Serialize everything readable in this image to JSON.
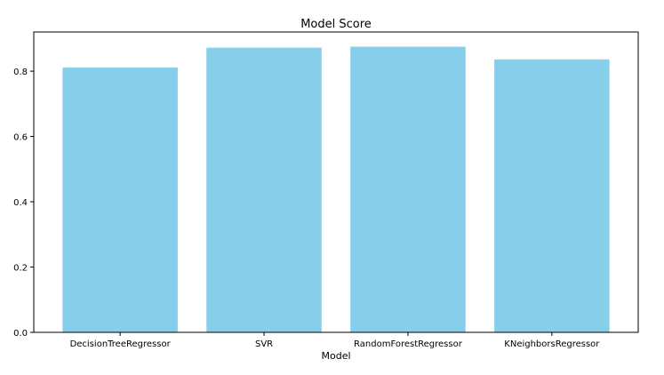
{
  "chart_data": {
    "type": "bar",
    "title": "Model Score",
    "xlabel": "Model",
    "ylabel": "",
    "categories": [
      "DecisionTreeRegressor",
      "SVR",
      "RandomForestRegressor",
      "KNeighborsRegressor"
    ],
    "values": [
      0.811,
      0.872,
      0.875,
      0.836
    ],
    "ylim": [
      0,
      0.92
    ],
    "yticks": [
      "0.0",
      "0.2",
      "0.4",
      "0.6",
      "0.8"
    ],
    "grid": false,
    "bar_color": "#87CEEB",
    "axis_color": "#000000"
  }
}
